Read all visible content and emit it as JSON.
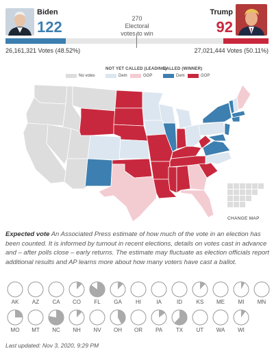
{
  "header": {
    "biden": {
      "name": "Biden",
      "electoral": "122",
      "votes": "26,161,321 Votes (48.52%)",
      "color": "#3d7fb0"
    },
    "trump": {
      "name": "Trump",
      "electoral": "92",
      "votes": "27,021,444 Votes (50.11%)",
      "color": "#c8283d"
    },
    "center": {
      "number": "270",
      "line1": "Electoral",
      "line2": "votes to win"
    }
  },
  "legend": {
    "no_votes": "No votes",
    "not_called_title": "NOT YET CALLED (LEADING)",
    "called_title": "CALLED (WINNER)",
    "dem": "Dem",
    "gop": "GOP",
    "colors": {
      "no_votes": "#dddddd",
      "dem_leading": "#dce6f0",
      "gop_leading": "#f3ccd2",
      "dem_called": "#3d7fb0",
      "gop_called": "#c8283d"
    }
  },
  "change_map": "CHANGE MAP",
  "expected_vote": {
    "term": "Expected vote",
    "text": "An Associated Press estimate of how much of the vote in an election has been counted. It is informed by turnout in recent elections, details on votes cast in advance and – after polls close – early returns. The estimate may fluctuate as election officials report additional results and AP learns more about how many voters have cast a ballot."
  },
  "states": [
    {
      "code": "AK",
      "pct": 0.0
    },
    {
      "code": "AZ",
      "pct": 0.0
    },
    {
      "code": "CA",
      "pct": 0.0
    },
    {
      "code": "CO",
      "pct": 0.12
    },
    {
      "code": "FL",
      "pct": 0.85
    },
    {
      "code": "GA",
      "pct": 0.12
    },
    {
      "code": "HI",
      "pct": 0.0
    },
    {
      "code": "IA",
      "pct": 0.0
    },
    {
      "code": "ID",
      "pct": 0.0
    },
    {
      "code": "KS",
      "pct": 0.12
    },
    {
      "code": "ME",
      "pct": 0.0
    },
    {
      "code": "MI",
      "pct": 0.08
    },
    {
      "code": "MN",
      "pct": 0.0
    },
    {
      "code": "MO",
      "pct": 0.25
    },
    {
      "code": "MT",
      "pct": 0.0
    },
    {
      "code": "NC",
      "pct": 0.78
    },
    {
      "code": "NH",
      "pct": 0.12
    },
    {
      "code": "NV",
      "pct": 0.0
    },
    {
      "code": "OH",
      "pct": 0.42
    },
    {
      "code": "OR",
      "pct": 0.0
    },
    {
      "code": "PA",
      "pct": 0.15
    },
    {
      "code": "TX",
      "pct": 0.62
    },
    {
      "code": "UT",
      "pct": 0.0
    },
    {
      "code": "WA",
      "pct": 0.0
    },
    {
      "code": "WI",
      "pct": 0.1
    }
  ],
  "updated": "Last updated: Nov 3, 2020, 9:29 PM"
}
